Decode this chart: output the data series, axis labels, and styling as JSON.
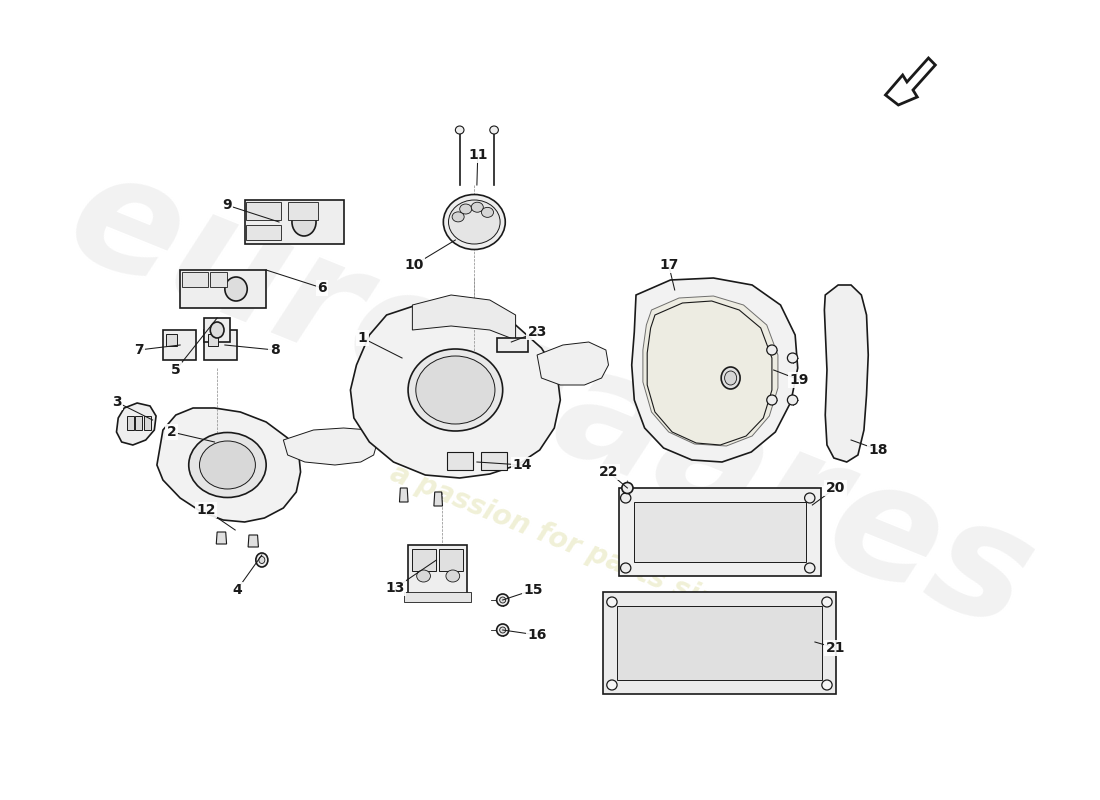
{
  "bg_color": "#ffffff",
  "line_color": "#1a1a1a",
  "fill_light": "#f0f0f0",
  "fill_mid": "#e0e0e0",
  "watermark_color": "#e8e8e8",
  "watermark_yellow": "#f0f0a0",
  "label_fontsize": 10,
  "label_color": "#111111",
  "fig_w": 11.0,
  "fig_h": 8.0,
  "dpi": 100
}
